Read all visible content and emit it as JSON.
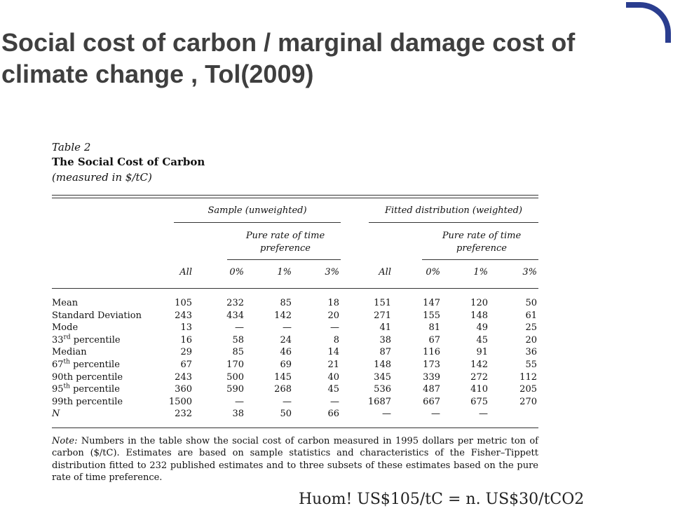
{
  "slide": {
    "title": "Social cost of carbon / marginal damage cost of climate change , Tol(2009)",
    "footer": "Huom! US$105/tC = n. US$30/tCO2"
  },
  "table": {
    "label": "Table 2",
    "title": "The Social Cost of Carbon",
    "units": "(measured in $/tC)",
    "group_headers": [
      "Sample (unweighted)",
      "Fitted distribution (weighted)"
    ],
    "subgroup_header": "Pure rate of time preference",
    "columns": [
      "All",
      "0%",
      "1%",
      "3%",
      "All",
      "0%",
      "1%",
      "3%"
    ],
    "rows": [
      {
        "label": "Mean",
        "values": [
          "105",
          "232",
          "85",
          "18",
          "151",
          "147",
          "120",
          "50"
        ]
      },
      {
        "label": "Standard Deviation",
        "values": [
          "243",
          "434",
          "142",
          "20",
          "271",
          "155",
          "148",
          "61"
        ]
      },
      {
        "label": "Mode",
        "values": [
          "13",
          "—",
          "—",
          "—",
          "41",
          "81",
          "49",
          "25"
        ]
      },
      {
        "label_num": "33",
        "label_sup": "rd",
        "label_rest": " percentile",
        "values": [
          "16",
          "58",
          "24",
          "8",
          "38",
          "67",
          "45",
          "20"
        ]
      },
      {
        "label": "Median",
        "values": [
          "29",
          "85",
          "46",
          "14",
          "87",
          "116",
          "91",
          "36"
        ]
      },
      {
        "label_num": "67",
        "label_sup": "th",
        "label_rest": " percentile",
        "values": [
          "67",
          "170",
          "69",
          "21",
          "148",
          "173",
          "142",
          "55"
        ]
      },
      {
        "label": "90th percentile",
        "values": [
          "243",
          "500",
          "145",
          "40",
          "345",
          "339",
          "272",
          "112"
        ]
      },
      {
        "label_num": "95",
        "label_sup": "th",
        "label_rest": " percentile",
        "values": [
          "360",
          "590",
          "268",
          "45",
          "536",
          "487",
          "410",
          "205"
        ]
      },
      {
        "label": "99th percentile",
        "values": [
          "1500",
          "—",
          "—",
          "—",
          "1687",
          "667",
          "675",
          "270"
        ]
      },
      {
        "label": "N",
        "italic": true,
        "values": [
          "232",
          "38",
          "50",
          "66",
          "—",
          "—",
          "—",
          ""
        ]
      }
    ],
    "note_lead": "Note:",
    "note_text": "Numbers in the table show the social cost of carbon measured in 1995 dollars per metric ton of carbon ($/tC). Estimates are based on sample statistics and characteristics of the Fisher–Tippett distribution fitted to 232 published estimates and to three subsets of these estimates based on the pure rate of time preference."
  },
  "colors": {
    "accent": "#2a3d8f",
    "title_text": "#3f3f3f"
  }
}
